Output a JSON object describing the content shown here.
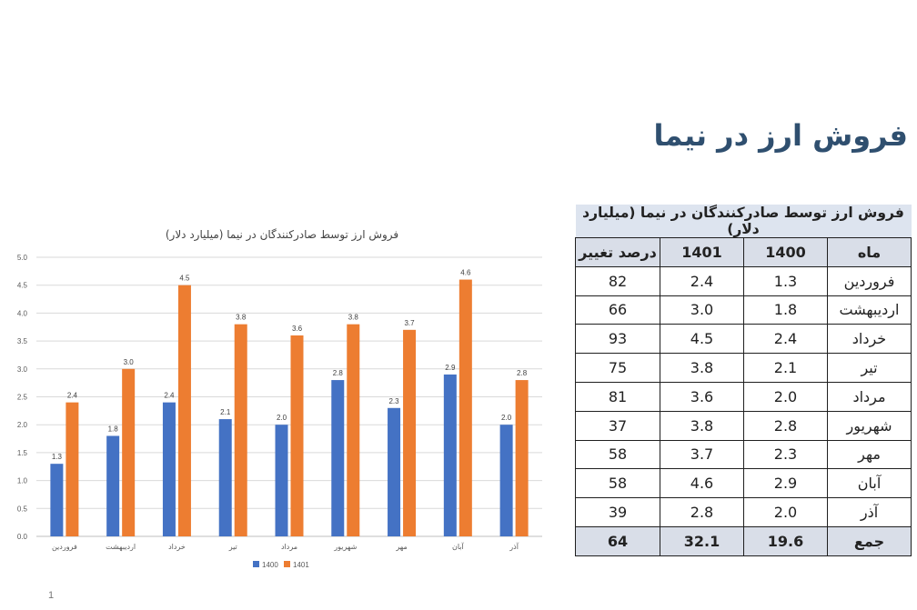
{
  "slide": {
    "title": "فروش ارز در نیما",
    "page_number": "1"
  },
  "chart_data": {
    "type": "bar",
    "title": "فروش ارز توسط صادرکنندگان در نیما (میلیارد دلار)",
    "categories": [
      "فروردین",
      "اردیبهشت",
      "خرداد",
      "تیر",
      "مرداد",
      "شهریور",
      "مهر",
      "آبان",
      "آذر"
    ],
    "series": [
      {
        "name": "1400",
        "values": [
          1.3,
          1.8,
          2.4,
          2.1,
          2.0,
          2.8,
          2.3,
          2.9,
          2.0
        ],
        "labels": [
          "1.3",
          "1.8",
          "2.4",
          "2.1",
          "2.0",
          "2.8",
          "2.3",
          "2.9",
          "2.0"
        ],
        "color": "#4472c4"
      },
      {
        "name": "1401",
        "values": [
          2.4,
          3.0,
          4.5,
          3.8,
          3.6,
          3.8,
          3.7,
          4.6,
          2.8
        ],
        "labels": [
          "2.4",
          "3.0",
          "4.5",
          "3.8",
          "3.6",
          "3.8",
          "3.7",
          "4.6",
          "2.8"
        ],
        "color": "#ed7d31"
      }
    ],
    "ylim": [
      0,
      5.0
    ],
    "yticks": [
      "0.0",
      "0.5",
      "1.0",
      "1.5",
      "2.0",
      "2.5",
      "3.0",
      "3.5",
      "4.0",
      "4.5",
      "5.0"
    ],
    "grid": true,
    "legend": "bottom"
  },
  "table": {
    "caption": "فروش ارز توسط صادرکنندگان در نیما (میلیارد دلار)",
    "headers": {
      "month": "ماه",
      "v1400": "1400",
      "v1401": "1401",
      "change": "درصد تغییر"
    },
    "rows": [
      {
        "month": "فروردین",
        "v1400": "1.3",
        "v1401": "2.4",
        "change": "82"
      },
      {
        "month": "اردیبهشت",
        "v1400": "1.8",
        "v1401": "3.0",
        "change": "66"
      },
      {
        "month": "خرداد",
        "v1400": "2.4",
        "v1401": "4.5",
        "change": "93"
      },
      {
        "month": "تیر",
        "v1400": "2.1",
        "v1401": "3.8",
        "change": "75"
      },
      {
        "month": "مرداد",
        "v1400": "2.0",
        "v1401": "3.6",
        "change": "81"
      },
      {
        "month": "شهریور",
        "v1400": "2.8",
        "v1401": "3.8",
        "change": "37"
      },
      {
        "month": "مهر",
        "v1400": "2.3",
        "v1401": "3.7",
        "change": "58"
      },
      {
        "month": "آبان",
        "v1400": "2.9",
        "v1401": "4.6",
        "change": "58"
      },
      {
        "month": "آذر",
        "v1400": "2.0",
        "v1401": "2.8",
        "change": "39"
      }
    ],
    "total": {
      "month": "جمع",
      "v1400": "19.6",
      "v1401": "32.1",
      "change": "64"
    }
  }
}
